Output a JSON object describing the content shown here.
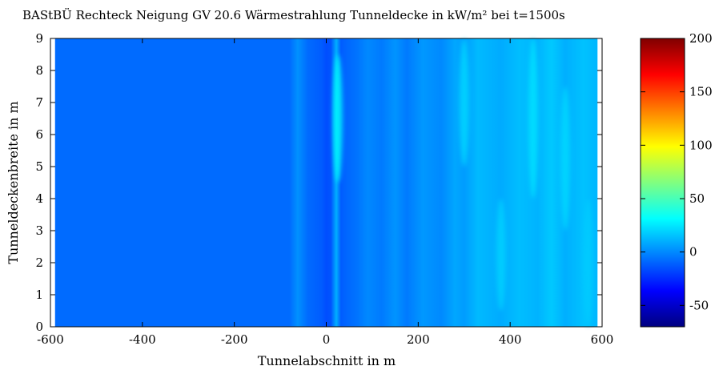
{
  "chart_data": {
    "type": "heatmap",
    "title": "BAStBÜ Rechteck Neigung GV 20.6 Wärmestrahlung Tunneldecke in kW/m² bei t=1500s",
    "xlabel": "Tunnelabschnitt in m",
    "ylabel": "Tunneldeckenbreite in m",
    "xlim": [
      -600,
      600
    ],
    "ylim": [
      0,
      9
    ],
    "data_x_extent": [
      -590,
      590
    ],
    "x_ticks": [
      -600,
      -400,
      -200,
      0,
      200,
      400,
      600
    ],
    "y_ticks": [
      0,
      1,
      2,
      3,
      4,
      5,
      6,
      7,
      8,
      9
    ],
    "colorbar": {
      "colormap": "jet",
      "range": [
        -70,
        200
      ],
      "ticks": [
        -50,
        0,
        50,
        100,
        150,
        200
      ]
    },
    "background_value": -8,
    "x_profile_centers": [
      -590,
      -80,
      -62,
      -40,
      -10,
      0,
      10,
      22,
      32,
      45,
      65,
      90,
      120,
      150,
      175,
      210,
      250,
      280,
      300,
      330,
      380,
      420,
      460,
      490,
      520,
      560,
      590
    ],
    "x_profile_values": [
      -8,
      -8,
      2,
      -8,
      -12,
      -16,
      -14,
      10,
      -12,
      -9,
      -6,
      0,
      -4,
      3,
      -4,
      4,
      0,
      8,
      5,
      13,
      9,
      14,
      11,
      17,
      10,
      15,
      12
    ],
    "highlights": [
      {
        "x": 25,
        "y_from": 4.5,
        "y_to": 8.5,
        "value": 32
      },
      {
        "x": 300,
        "y_from": 5.0,
        "y_to": 9.0,
        "value": 22
      },
      {
        "x": 450,
        "y_from": 4.0,
        "y_to": 9.0,
        "value": 24
      },
      {
        "x": 520,
        "y_from": 3.0,
        "y_to": 7.5,
        "value": 22
      },
      {
        "x": 380,
        "y_from": 0.5,
        "y_to": 4.0,
        "value": 20
      },
      {
        "x": 570,
        "y_from": 0.0,
        "y_to": 4.0,
        "value": 18
      }
    ]
  }
}
